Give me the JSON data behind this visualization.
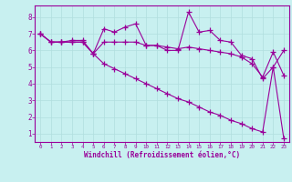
{
  "xlabel": "Windchill (Refroidissement éolien,°C)",
  "background_color": "#c8f0f0",
  "line_color": "#990099",
  "grid_color": "#b0dede",
  "xlim": [
    -0.5,
    23.5
  ],
  "ylim": [
    0.5,
    8.7
  ],
  "xticks": [
    0,
    1,
    2,
    3,
    4,
    5,
    6,
    7,
    8,
    9,
    10,
    11,
    12,
    13,
    14,
    15,
    16,
    17,
    18,
    19,
    20,
    21,
    22,
    23
  ],
  "yticks": [
    1,
    2,
    3,
    4,
    5,
    6,
    7,
    8
  ],
  "line1_x": [
    0,
    1,
    2,
    3,
    4,
    5,
    6,
    7,
    8,
    9,
    10,
    11,
    12,
    13,
    14,
    15,
    16,
    17,
    18,
    19,
    20,
    21,
    22,
    23
  ],
  "line1_y": [
    7.0,
    6.5,
    6.5,
    6.5,
    6.5,
    5.8,
    7.3,
    7.1,
    7.4,
    7.6,
    6.3,
    6.3,
    6.0,
    6.0,
    8.3,
    7.1,
    7.2,
    6.6,
    6.5,
    5.7,
    5.5,
    4.3,
    5.0,
    6.0
  ],
  "line2_x": [
    0,
    1,
    2,
    3,
    4,
    5,
    6,
    7,
    8,
    9,
    10,
    11,
    12,
    13,
    14,
    15,
    16,
    17,
    18,
    19,
    20,
    21,
    22,
    23
  ],
  "line2_y": [
    7.0,
    6.5,
    6.5,
    6.6,
    6.6,
    5.8,
    6.5,
    6.5,
    6.5,
    6.5,
    6.3,
    6.3,
    6.2,
    6.1,
    6.2,
    6.1,
    6.0,
    5.9,
    5.8,
    5.6,
    5.2,
    4.4,
    5.9,
    4.5
  ],
  "line3_x": [
    0,
    1,
    2,
    3,
    4,
    5,
    6,
    7,
    8,
    9,
    10,
    11,
    12,
    13,
    14,
    15,
    16,
    17,
    18,
    19,
    20,
    21,
    22,
    23
  ],
  "line3_y": [
    7.0,
    6.5,
    6.5,
    6.5,
    6.5,
    5.8,
    5.2,
    4.9,
    4.6,
    4.3,
    4.0,
    3.7,
    3.4,
    3.1,
    2.9,
    2.6,
    2.3,
    2.1,
    1.8,
    1.6,
    1.3,
    1.1,
    5.0,
    0.7
  ],
  "marker": "+",
  "markersize": 4,
  "linewidth": 0.8
}
